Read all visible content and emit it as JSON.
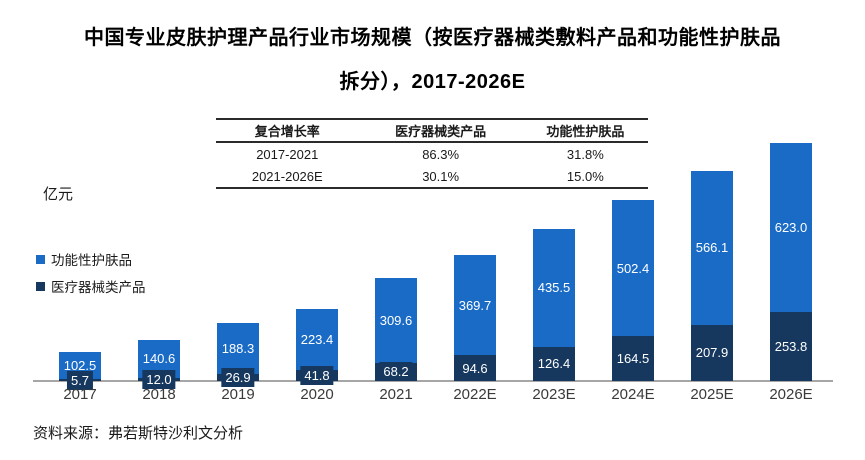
{
  "title": {
    "line1": "中国专业皮肤护理产品行业市场规模（按医疗器械类敷料产品和功能性护肤品",
    "line2": "拆分），2017-2026E"
  },
  "growth_table": {
    "headers": [
      "复合增长率",
      "医疗器械类产品",
      "功能性护肤品"
    ],
    "rows": [
      [
        "2017-2021",
        "86.3%",
        "31.8%"
      ],
      [
        "2021-2026E",
        "30.1%",
        "15.0%"
      ]
    ]
  },
  "chart_data": {
    "type": "bar",
    "stacked": true,
    "title": "中国专业皮肤护理产品行业市场规模（按医疗器械类敷料产品和功能性护肤品拆分），2017-2026E",
    "ylabel": "亿元",
    "xlabel": "",
    "grid": false,
    "legend_position": "left",
    "value_labels": true,
    "categories": [
      "2017",
      "2018",
      "2019",
      "2020",
      "2021",
      "2022E",
      "2023E",
      "2024E",
      "2025E",
      "2026E"
    ],
    "series": [
      {
        "name": "功能性护肤品",
        "color": "#1a6bc6",
        "values": [
          102.5,
          140.6,
          188.3,
          223.4,
          309.6,
          369.7,
          435.5,
          502.4,
          566.1,
          623.0
        ]
      },
      {
        "name": "医疗器械类产品",
        "color": "#17385e",
        "values": [
          5.7,
          12.0,
          26.9,
          41.8,
          68.2,
          94.6,
          126.4,
          164.5,
          207.9,
          253.8
        ]
      }
    ],
    "ylim": [
      0,
      900
    ]
  },
  "source": "资料来源：弗若斯特沙利文分析"
}
